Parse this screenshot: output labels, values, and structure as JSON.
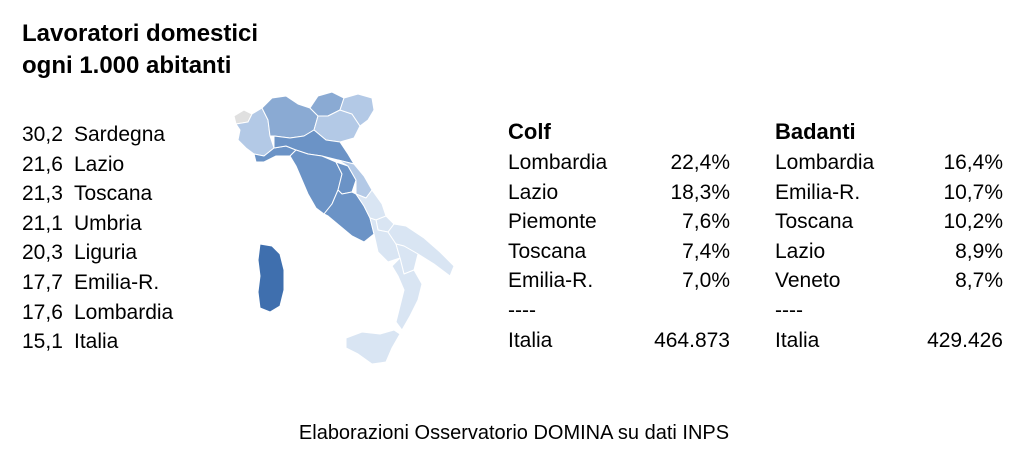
{
  "title": {
    "line1": "Lavoratori domestici",
    "line2": "ogni 1.000 abitanti"
  },
  "ranking": [
    {
      "value": "30,2",
      "region": "Sardegna"
    },
    {
      "value": "21,6",
      "region": "Lazio"
    },
    {
      "value": "21,3",
      "region": "Toscana"
    },
    {
      "value": "21,1",
      "region": "Umbria"
    },
    {
      "value": "20,3",
      "region": "Liguria"
    },
    {
      "value": "17,7",
      "region": "Emilia-R."
    },
    {
      "value": "17,6",
      "region": "Lombardia"
    },
    {
      "value": "15,1",
      "region": "Italia"
    }
  ],
  "colf": {
    "heading": "Colf",
    "rows": [
      {
        "name": "Lombardia",
        "value": "22,4%"
      },
      {
        "name": "Lazio",
        "value": "18,3%"
      },
      {
        "name": "Piemonte",
        "value": "7,6%"
      },
      {
        "name": "Toscana",
        "value": "7,4%"
      },
      {
        "name": "Emilia-R.",
        "value": "7,0%"
      },
      {
        "name": "----",
        "value": ""
      },
      {
        "name": "Italia",
        "value": "464.873"
      }
    ]
  },
  "badanti": {
    "heading": "Badanti",
    "rows": [
      {
        "name": "Lombardia",
        "value": "16,4%"
      },
      {
        "name": "Emilia-R.",
        "value": "10,7%"
      },
      {
        "name": "Toscana",
        "value": "10,2%"
      },
      {
        "name": "Lazio",
        "value": "8,9%"
      },
      {
        "name": "Veneto",
        "value": "8,7%"
      },
      {
        "name": "----",
        "value": ""
      },
      {
        "name": "Italia",
        "value": "429.426"
      }
    ]
  },
  "map_colors": {
    "darkest": "#3f6fae",
    "dark": "#6b93c6",
    "medium": "#8aaad3",
    "light": "#b3c9e6",
    "lightest": "#d9e5f3",
    "grey": "#e0e0e0"
  },
  "source": "Elaborazioni Osservatorio DOMINA su dati INPS"
}
